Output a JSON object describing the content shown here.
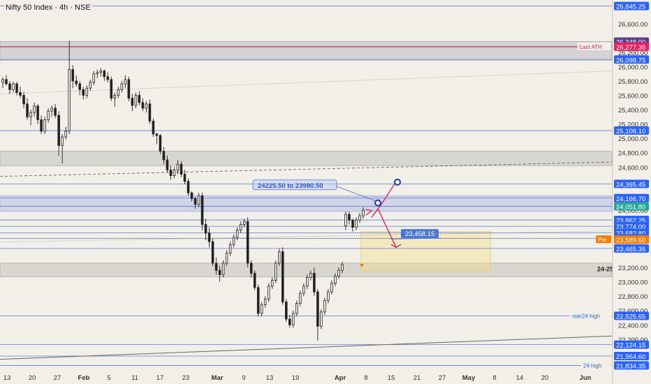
{
  "header": {
    "title": "Nifty 50 Index · 4h · NSE"
  },
  "chart_data": {
    "type": "candlestick",
    "title": "Nifty 50 Index · 4h · NSE",
    "ylim": [
      21780,
      26880
    ],
    "y_ticks": [
      22200,
      22400,
      22600,
      22800,
      23000,
      23200,
      24000,
      24600,
      24800,
      25000,
      25200,
      25400,
      25600,
      25800,
      26000,
      26200,
      26600
    ],
    "x_ticks": [
      "13",
      "20",
      "27",
      "Feb",
      "5",
      "11",
      "17",
      "23",
      "Mar",
      "9",
      "13",
      "19",
      "Apr",
      "8",
      "15",
      "21",
      "27",
      "May",
      "8",
      "14",
      "20",
      "Jun"
    ],
    "levels": [
      {
        "value": 26845.25,
        "label": "26,845.25",
        "color": "#2962ff"
      },
      {
        "value": 26348.0,
        "label": "26,348.00",
        "color": "#5b3a8c"
      },
      {
        "value": 26281.2,
        "label": "26,281.20",
        "color": "#5b3a8c"
      },
      {
        "value": 26277.35,
        "label": "26,277.35",
        "color": "#e91e63",
        "note": "Last ATH"
      },
      {
        "value": 26098.75,
        "label": "26,098.75",
        "color": "#2962ff"
      },
      {
        "value": 25108.1,
        "label": "25,108.10",
        "color": "#2962ff"
      },
      {
        "value": 24365.45,
        "label": "24,365.45",
        "color": "#2962ff"
      },
      {
        "value": 24166.7,
        "label": "24,166.70",
        "color": "#2962ff"
      },
      {
        "value": 24051.8,
        "label": "24,051.80",
        "color": "#26a69a"
      },
      {
        "value": 23862.25,
        "label": "23,862.25",
        "color": "#2962ff"
      },
      {
        "value": 23774.0,
        "label": "23,774.00",
        "color": "#2962ff"
      },
      {
        "value": 23682.8,
        "label": "23,682.80",
        "color": "#2962ff"
      },
      {
        "value": 23605.55,
        "label": "23,605.55",
        "color": "#2962ff"
      },
      {
        "value": 23589.6,
        "label": "23,589.60",
        "color": "#f57c00",
        "note": "Pre"
      },
      {
        "value": 23465.35,
        "label": "23,465.35",
        "color": "#2962ff"
      },
      {
        "value": 22525.65,
        "label": "22,525.65",
        "color": "#2962ff",
        "note": "mar24 high"
      },
      {
        "value": 22124.15,
        "label": "22,124.15",
        "color": "#2962ff"
      },
      {
        "value": 21964.6,
        "label": "21,964.60",
        "color": "#2962ff"
      },
      {
        "value": 21834.35,
        "label": "21,834.35",
        "color": "#2962ff",
        "note": "24 high"
      }
    ],
    "annotations": {
      "range_label": "24225.50 to 23980.50",
      "target_label": "23,458.15",
      "zone_label": "24-25"
    },
    "candles": [
      [
        25780,
        25850,
        25700,
        25820
      ],
      [
        25820,
        25880,
        25740,
        25760
      ],
      [
        25760,
        25800,
        25620,
        25680
      ],
      [
        25680,
        25790,
        25640,
        25760
      ],
      [
        25760,
        25790,
        25600,
        25640
      ],
      [
        25640,
        25720,
        25560,
        25600
      ],
      [
        25600,
        25650,
        25420,
        25480
      ],
      [
        25480,
        25560,
        25260,
        25300
      ],
      [
        25300,
        25400,
        25180,
        25360
      ],
      [
        25360,
        25500,
        25300,
        25450
      ],
      [
        25450,
        25480,
        25200,
        25260
      ],
      [
        25260,
        25320,
        25060,
        25100
      ],
      [
        25100,
        25300,
        25060,
        25260
      ],
      [
        25260,
        25420,
        25220,
        25380
      ],
      [
        25380,
        25460,
        25300,
        25420
      ],
      [
        25420,
        25480,
        25280,
        25320
      ],
      [
        25320,
        25380,
        24760,
        24900
      ],
      [
        24900,
        25060,
        24650,
        25020
      ],
      [
        25020,
        25160,
        24980,
        25100
      ],
      [
        25100,
        26360,
        25060,
        25960
      ],
      [
        25960,
        26020,
        25700,
        25800
      ],
      [
        25800,
        25880,
        25720,
        25760
      ],
      [
        25760,
        25800,
        25600,
        25680
      ],
      [
        25680,
        25720,
        25540,
        25600
      ],
      [
        25600,
        25740,
        25560,
        25700
      ],
      [
        25700,
        25820,
        25660,
        25780
      ],
      [
        25780,
        25940,
        25740,
        25900
      ],
      [
        25900,
        25960,
        25840,
        25920
      ],
      [
        25920,
        25980,
        25860,
        25940
      ],
      [
        25940,
        25960,
        25800,
        25860
      ],
      [
        25860,
        25920,
        25780,
        25820
      ],
      [
        25820,
        25860,
        25520,
        25560
      ],
      [
        25560,
        25640,
        25440,
        25600
      ],
      [
        25600,
        25720,
        25560,
        25680
      ],
      [
        25680,
        25800,
        25640,
        25760
      ],
      [
        25760,
        25880,
        25700,
        25820
      ],
      [
        25820,
        25860,
        25520,
        25560
      ],
      [
        25560,
        25620,
        25380,
        25460
      ],
      [
        25460,
        25640,
        25420,
        25600
      ],
      [
        25600,
        25660,
        25460,
        25500
      ],
      [
        25500,
        25560,
        25380,
        25420
      ],
      [
        25420,
        25520,
        25360,
        25480
      ],
      [
        25480,
        25540,
        25200,
        25240
      ],
      [
        25240,
        25280,
        25020,
        25060
      ],
      [
        25060,
        25080,
        24920,
        25040
      ],
      [
        25040,
        25060,
        24780,
        24820
      ],
      [
        24820,
        24880,
        24640,
        24700
      ],
      [
        24700,
        24760,
        24520,
        24560
      ],
      [
        24560,
        24620,
        24420,
        24480
      ],
      [
        24480,
        24600,
        24440,
        24560
      ],
      [
        24560,
        24700,
        24500,
        24640
      ],
      [
        24640,
        24680,
        24460,
        24500
      ],
      [
        24500,
        24560,
        24360,
        24400
      ],
      [
        24400,
        24440,
        24200,
        24240
      ],
      [
        24240,
        24260,
        24120,
        24160
      ],
      [
        24160,
        24180,
        24020,
        24080
      ],
      [
        24080,
        24240,
        24040,
        24200
      ],
      [
        24200,
        24240,
        23720,
        23800
      ],
      [
        23800,
        23880,
        23580,
        23680
      ],
      [
        23680,
        23760,
        23480,
        23560
      ],
      [
        23560,
        23600,
        23220,
        23260
      ],
      [
        23260,
        23340,
        23100,
        23160
      ],
      [
        23160,
        23220,
        23000,
        23100
      ],
      [
        23100,
        23300,
        23060,
        23260
      ],
      [
        23260,
        23440,
        23220,
        23400
      ],
      [
        23400,
        23560,
        23360,
        23520
      ],
      [
        23520,
        23660,
        23480,
        23620
      ],
      [
        23620,
        23760,
        23580,
        23720
      ],
      [
        23720,
        23840,
        23680,
        23800
      ],
      [
        23800,
        23880,
        23760,
        23840
      ],
      [
        23840,
        23900,
        23200,
        23260
      ],
      [
        23260,
        23300,
        23060,
        23120
      ],
      [
        23120,
        23160,
        22880,
        22920
      ],
      [
        22920,
        22960,
        22520,
        22560
      ],
      [
        22560,
        22720,
        22520,
        22680
      ],
      [
        22680,
        22800,
        22640,
        22760
      ],
      [
        22760,
        22980,
        22720,
        22940
      ],
      [
        22940,
        23060,
        22900,
        23020
      ],
      [
        23020,
        23300,
        22980,
        23260
      ],
      [
        23260,
        23460,
        23220,
        23420
      ],
      [
        23420,
        23480,
        22680,
        22720
      ],
      [
        22720,
        22760,
        22440,
        22480
      ],
      [
        22480,
        22540,
        22360,
        22400
      ],
      [
        22400,
        22600,
        22360,
        22560
      ],
      [
        22560,
        22740,
        22520,
        22700
      ],
      [
        22700,
        22880,
        22660,
        22840
      ],
      [
        22840,
        22980,
        22800,
        22940
      ],
      [
        22940,
        23100,
        22900,
        23060
      ],
      [
        23060,
        23160,
        23020,
        23120
      ],
      [
        23120,
        23200,
        22800,
        22860
      ],
      [
        22860,
        22900,
        22180,
        22380
      ],
      [
        22380,
        22620,
        22340,
        22580
      ],
      [
        22580,
        22780,
        22540,
        22740
      ],
      [
        22740,
        22900,
        22700,
        22860
      ],
      [
        22860,
        23020,
        22820,
        22980
      ],
      [
        22980,
        23120,
        22940,
        23080
      ],
      [
        23080,
        23200,
        23040,
        23160
      ],
      [
        23160,
        23280,
        23120,
        23240
      ],
      [
        23780,
        23980,
        23720,
        23940
      ],
      [
        23940,
        23980,
        23800,
        23860
      ],
      [
        23860,
        23880,
        23700,
        23760
      ],
      [
        23760,
        23900,
        23720,
        23860
      ],
      [
        23860,
        23960,
        23820,
        23920
      ],
      [
        23920,
        24040,
        23880,
        24000
      ]
    ]
  }
}
